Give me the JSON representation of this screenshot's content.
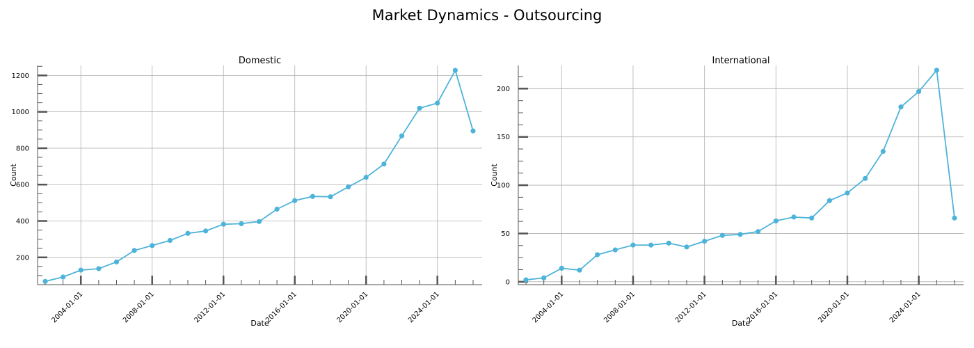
{
  "title": "Market Dynamics - Outsourcing",
  "colors": {
    "line": "#4eb3d9",
    "grid": "#b0b0b0",
    "axis": "#555555"
  },
  "chart_data": [
    {
      "type": "line",
      "title": "Domestic",
      "xlabel": "Date",
      "ylabel": "Count",
      "grid": true,
      "x_tick_labels": [
        "2004-01-01",
        "2008-01-01",
        "2012-01-01",
        "2016-01-01",
        "2020-01-01",
        "2024-01-01"
      ],
      "y_ticks": [
        200,
        400,
        600,
        800,
        1000,
        1200
      ],
      "ylim": [
        50,
        1255
      ],
      "series": [
        {
          "x": [
            "2002-01-01",
            "2003-01-01",
            "2004-01-01",
            "2005-01-01",
            "2006-01-01",
            "2007-01-01",
            "2008-01-01",
            "2009-01-01",
            "2010-01-01",
            "2011-01-01",
            "2012-01-01",
            "2013-01-01",
            "2014-01-01",
            "2015-01-01",
            "2016-01-01",
            "2017-01-01",
            "2018-01-01",
            "2019-01-01",
            "2020-01-01",
            "2021-01-01",
            "2022-01-01",
            "2023-01-01",
            "2024-01-01",
            "2025-01-01",
            "2026-01-01"
          ],
          "y": [
            68,
            92,
            130,
            138,
            175,
            238,
            265,
            293,
            332,
            345,
            382,
            385,
            397,
            465,
            512,
            535,
            533,
            587,
            640,
            713,
            868,
            1020,
            1048,
            1228,
            895
          ]
        }
      ]
    },
    {
      "type": "line",
      "title": "International",
      "xlabel": "Date",
      "ylabel": "Count",
      "grid": true,
      "x_tick_labels": [
        "2004-01-01",
        "2008-01-01",
        "2012-01-01",
        "2016-01-01",
        "2020-01-01",
        "2024-01-01"
      ],
      "y_ticks": [
        0,
        50,
        100,
        150,
        200
      ],
      "ylim": [
        -3,
        224
      ],
      "series": [
        {
          "x": [
            "2002-01-01",
            "2003-01-01",
            "2004-01-01",
            "2005-01-01",
            "2006-01-01",
            "2007-01-01",
            "2008-01-01",
            "2009-01-01",
            "2010-01-01",
            "2011-01-01",
            "2012-01-01",
            "2013-01-01",
            "2014-01-01",
            "2015-01-01",
            "2016-01-01",
            "2017-01-01",
            "2018-01-01",
            "2019-01-01",
            "2020-01-01",
            "2021-01-01",
            "2022-01-01",
            "2023-01-01",
            "2024-01-01",
            "2025-01-01",
            "2026-01-01"
          ],
          "y": [
            2,
            4,
            14,
            12,
            28,
            33,
            38,
            38,
            40,
            36,
            42,
            48,
            49,
            52,
            63,
            67,
            66,
            84,
            92,
            107,
            135,
            181,
            197,
            219,
            66
          ]
        }
      ]
    }
  ]
}
